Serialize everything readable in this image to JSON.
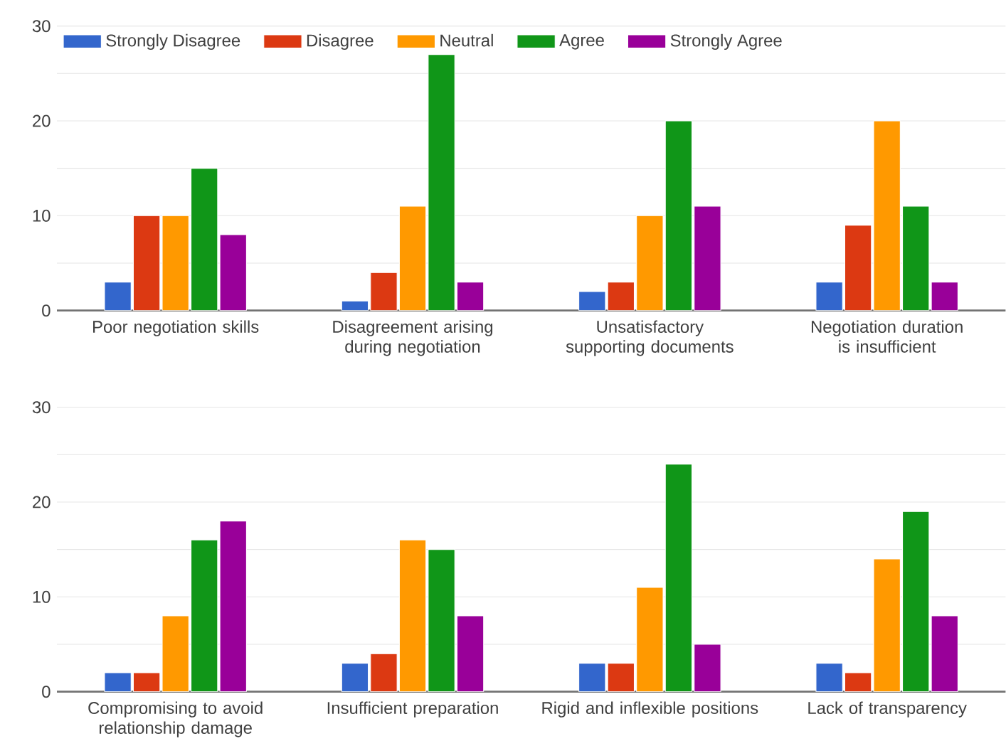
{
  "chart_data": [
    {
      "type": "bar",
      "categories": [
        "Poor negotiation skills",
        "Disagreement arising during negotiation",
        "Unsatisfactory supporting documents",
        "Negotiation duration is insufficient"
      ],
      "series": [
        {
          "name": "Strongly Disagree",
          "color": "#3366cc",
          "values": [
            3,
            1,
            2,
            3
          ]
        },
        {
          "name": "Disagree",
          "color": "#dc3912",
          "values": [
            10,
            4,
            3,
            9
          ]
        },
        {
          "name": "Neutral",
          "color": "#ff9900",
          "values": [
            10,
            11,
            10,
            20
          ]
        },
        {
          "name": "Agree",
          "color": "#109618",
          "values": [
            15,
            27,
            20,
            11
          ]
        },
        {
          "name": "Strongly Agree",
          "color": "#990099",
          "values": [
            8,
            3,
            11,
            3
          ]
        }
      ],
      "ylim": [
        0,
        30
      ],
      "yticks": [
        0,
        {
          "value": 5,
          "label": null
        },
        10,
        {
          "value": 15,
          "label": null
        },
        20,
        {
          "value": 25,
          "label": null
        },
        30
      ],
      "grid": "y",
      "legend": "top left"
    },
    {
      "type": "bar",
      "categories": [
        "Compromising to avoid relationship damage",
        "Insufficient preparation",
        "Rigid and inflexible positions",
        "Lack of transparency"
      ],
      "series": [
        {
          "color": "#3366cc",
          "values": [
            2,
            3,
            3,
            3
          ]
        },
        {
          "color": "#dc3912",
          "values": [
            2,
            4,
            3,
            2
          ]
        },
        {
          "color": "#ff9900",
          "values": [
            8,
            16,
            11,
            14
          ]
        },
        {
          "color": "#109618",
          "values": [
            16,
            15,
            24,
            19
          ]
        },
        {
          "color": "#990099",
          "values": [
            18,
            8,
            5,
            8
          ]
        }
      ],
      "ylim": [
        0,
        30
      ],
      "yticks": [
        0,
        {
          "value": 5,
          "label": null
        },
        10,
        {
          "value": 15,
          "label": null
        },
        20,
        {
          "value": 25,
          "label": null
        },
        30
      ],
      "grid": "y",
      "legend": false
    }
  ]
}
